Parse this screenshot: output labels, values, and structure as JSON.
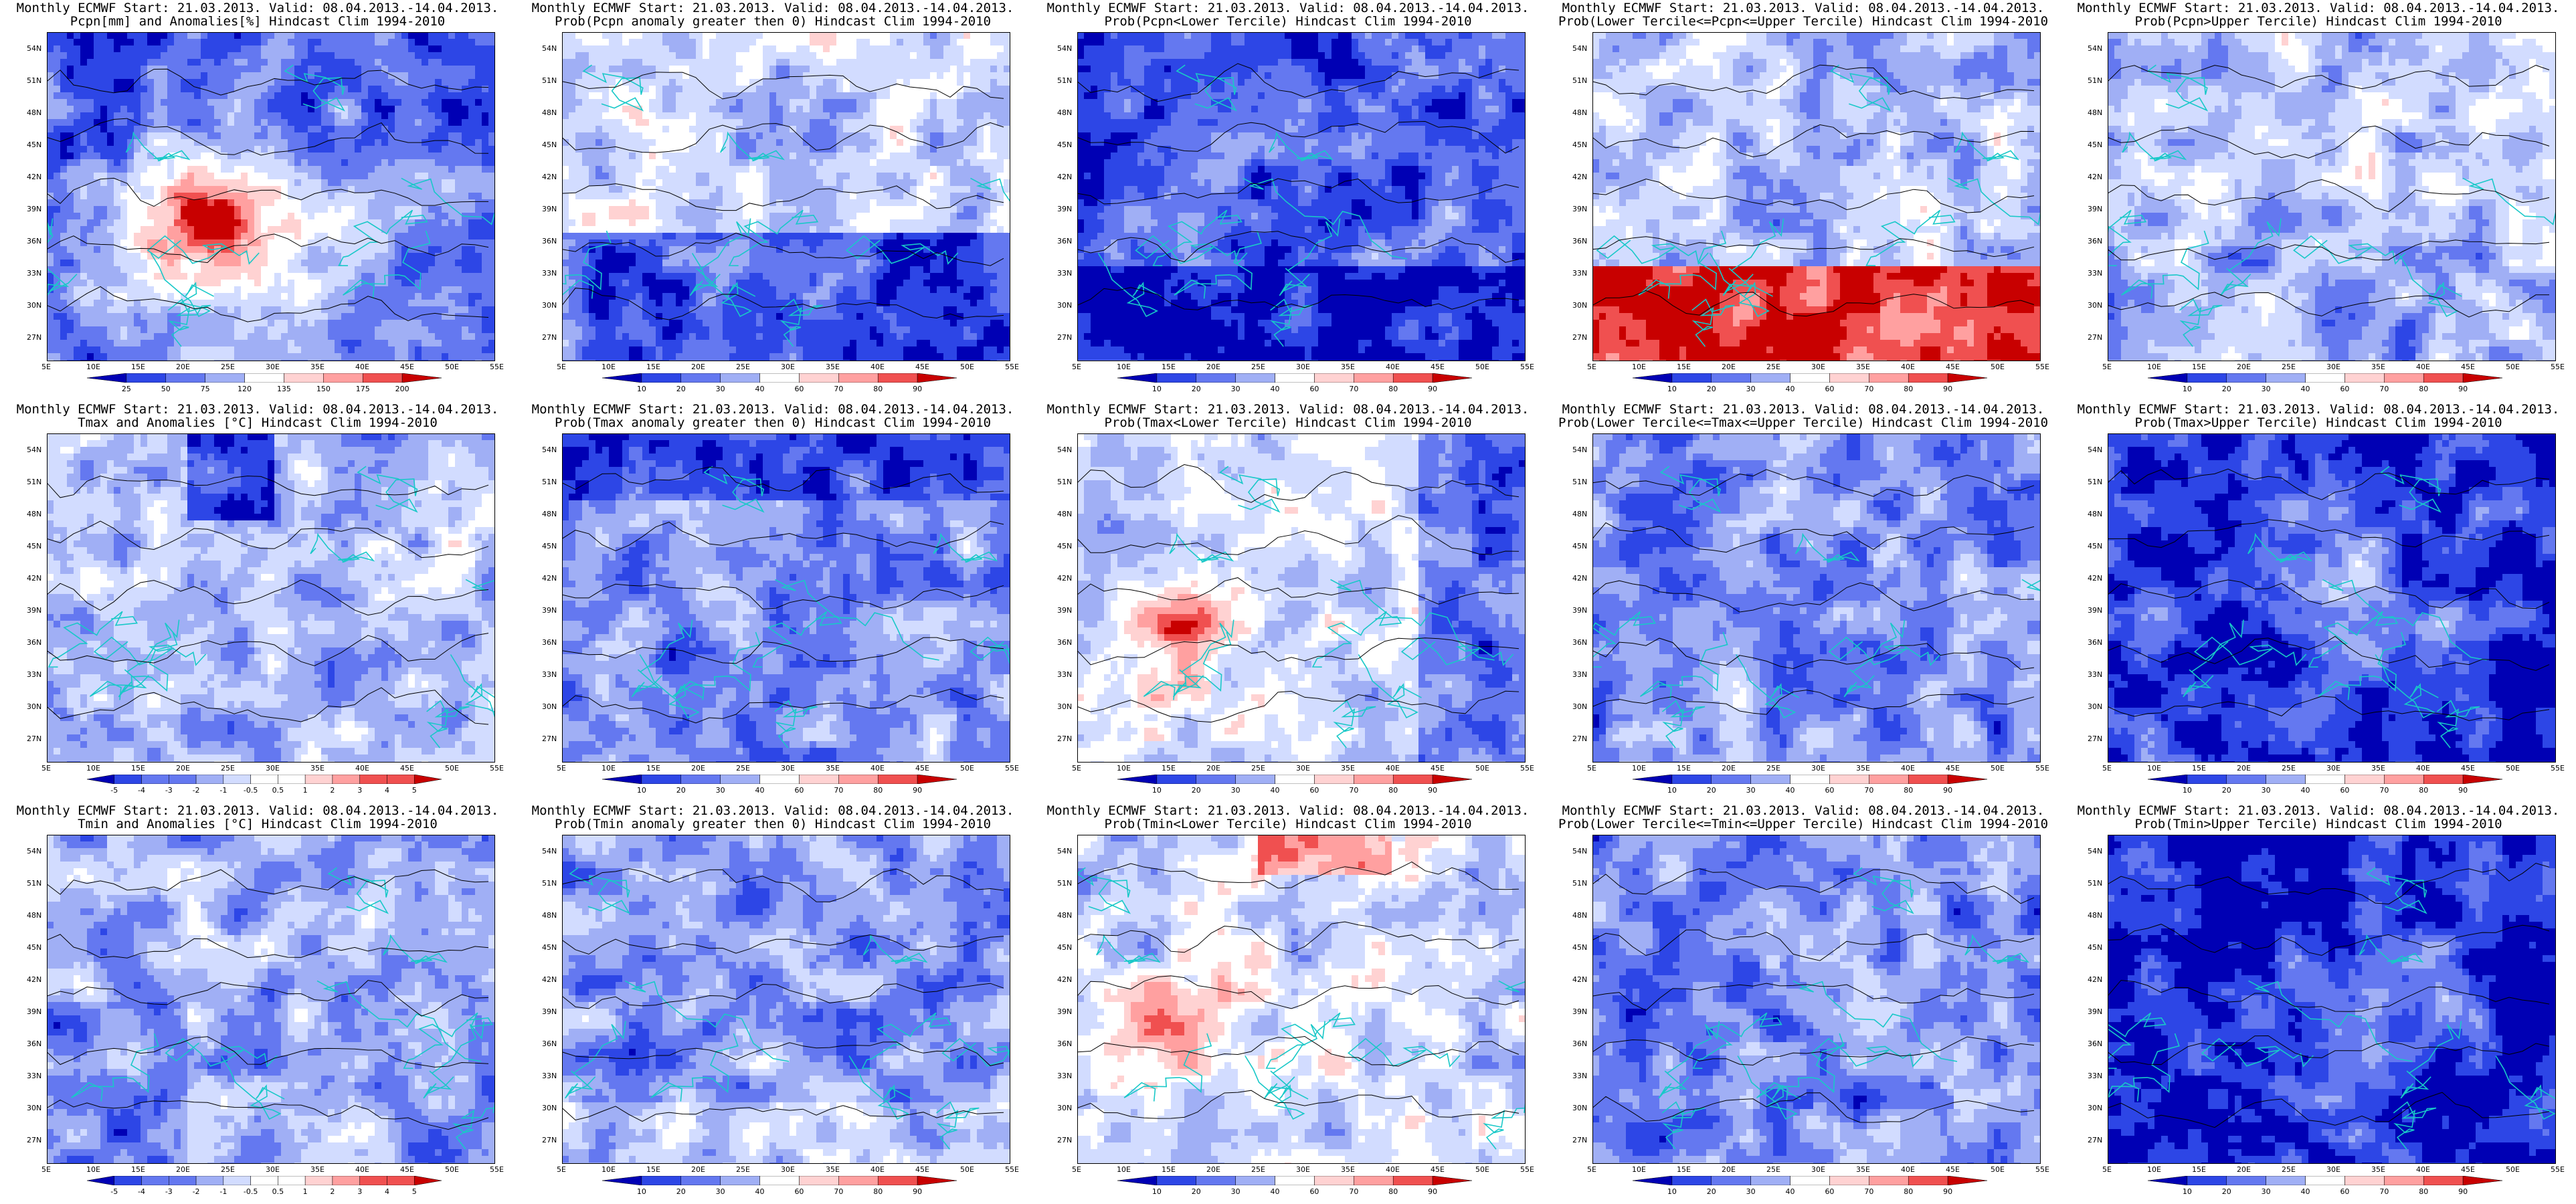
{
  "figure": {
    "title_line1": "Monthly ECMWF Start: 21.03.2013. Valid: 08.04.2013.-14.04.2013.",
    "lat_labels": [
      "54N",
      "51N",
      "48N",
      "45N",
      "42N",
      "39N",
      "36N",
      "33N",
      "30N",
      "27N"
    ],
    "lon_labels": [
      "5E",
      "10E",
      "15E",
      "20E",
      "25E",
      "30E",
      "35E",
      "40E",
      "45E",
      "50E",
      "55E"
    ],
    "colors": {
      "deep_blue": "#0000b4",
      "blue": "#2d46e6",
      "mid_blue": "#6478f0",
      "light_blue": "#a0aff5",
      "pale_blue": "#d2dcff",
      "white": "#ffffff",
      "pale_red": "#ffd2d2",
      "light_red": "#ffa0a0",
      "red": "#f05050",
      "deep_red": "#c80000",
      "border_cyan": "#19c8c8",
      "contour": "#000000"
    }
  },
  "panels": [
    {
      "id": "pcpn-anom",
      "title2": "Pcpn[mm] and Anomalies[%] Hindcast Clim 1994-2010",
      "colorbar_labels": [
        "25",
        "50",
        "75",
        "120",
        "135",
        "150",
        "175",
        "200"
      ],
      "palette": "anomaly",
      "field": "p1"
    },
    {
      "id": "pcpn-prob-gt0",
      "title2": "Prob(Pcpn anomaly greater then 0) Hindcast Clim 1994-2010",
      "colorbar_labels": [
        "10",
        "20",
        "30",
        "40",
        "60",
        "70",
        "80",
        "90"
      ],
      "palette": "prob",
      "field": "p2"
    },
    {
      "id": "pcpn-lower",
      "title2": "Prob(Pcpn<Lower Tercile) Hindcast Clim 1994-2010",
      "colorbar_labels": [
        "10",
        "20",
        "30",
        "40",
        "60",
        "70",
        "80",
        "90"
      ],
      "palette": "prob",
      "field": "p3"
    },
    {
      "id": "pcpn-middle",
      "title2": "Prob(Lower Tercile<=Pcpn<=Upper Tercile) Hindcast Clim 1994-2010",
      "colorbar_labels": [
        "10",
        "20",
        "30",
        "40",
        "60",
        "70",
        "80",
        "90"
      ],
      "palette": "prob",
      "field": "p4"
    },
    {
      "id": "pcpn-upper",
      "title2": "Prob(Pcpn>Upper Tercile) Hindcast Clim 1994-2010",
      "colorbar_labels": [
        "10",
        "20",
        "30",
        "40",
        "60",
        "70",
        "80",
        "90"
      ],
      "palette": "prob",
      "field": "p5"
    },
    {
      "id": "tmax-anom",
      "title2": "Tmax and Anomalies [°C] Hindcast Clim 1994-2010",
      "colorbar_labels": [
        "-5",
        "-4",
        "-3",
        "-2",
        "-1",
        "-0.5",
        "0.5",
        "1",
        "2",
        "3",
        "4",
        "5"
      ],
      "palette": "anomaly",
      "field": "t1"
    },
    {
      "id": "tmax-prob-gt0",
      "title2": "Prob(Tmax anomaly greater then 0) Hindcast Clim 1994-2010",
      "colorbar_labels": [
        "10",
        "20",
        "30",
        "40",
        "60",
        "70",
        "80",
        "90"
      ],
      "palette": "prob",
      "field": "t2"
    },
    {
      "id": "tmax-lower",
      "title2": "Prob(Tmax<Lower Tercile) Hindcast Clim 1994-2010",
      "colorbar_labels": [
        "10",
        "20",
        "30",
        "40",
        "60",
        "70",
        "80",
        "90"
      ],
      "palette": "prob",
      "field": "t3"
    },
    {
      "id": "tmax-middle",
      "title2": "Prob(Lower Tercile<=Tmax<=Upper Tercile) Hindcast Clim 1994-2010",
      "colorbar_labels": [
        "10",
        "20",
        "30",
        "40",
        "60",
        "70",
        "80",
        "90"
      ],
      "palette": "prob",
      "field": "t4"
    },
    {
      "id": "tmax-upper",
      "title2": "Prob(Tmax>Upper Tercile) Hindcast Clim 1994-2010",
      "colorbar_labels": [
        "10",
        "20",
        "30",
        "40",
        "60",
        "70",
        "80",
        "90"
      ],
      "palette": "prob",
      "field": "t5"
    },
    {
      "id": "tmin-anom",
      "title2": "Tmin and Anomalies [°C] Hindcast Clim 1994-2010",
      "colorbar_labels": [
        "-5",
        "-4",
        "-3",
        "-2",
        "-1",
        "-0.5",
        "0.5",
        "1",
        "2",
        "3",
        "4",
        "5"
      ],
      "palette": "anomaly",
      "field": "n1"
    },
    {
      "id": "tmin-prob-gt0",
      "title2": "Prob(Tmin anomaly greater then 0) Hindcast Clim 1994-2010",
      "colorbar_labels": [
        "10",
        "20",
        "30",
        "40",
        "60",
        "70",
        "80",
        "90"
      ],
      "palette": "prob",
      "field": "n2"
    },
    {
      "id": "tmin-lower",
      "title2": "Prob(Tmin<Lower Tercile) Hindcast Clim 1994-2010",
      "colorbar_labels": [
        "10",
        "20",
        "30",
        "40",
        "60",
        "70",
        "80",
        "90"
      ],
      "palette": "prob",
      "field": "n3"
    },
    {
      "id": "tmin-middle",
      "title2": "Prob(Lower Tercile<=Tmin<=Upper Tercile) Hindcast Clim 1994-2010",
      "colorbar_labels": [
        "10",
        "20",
        "30",
        "40",
        "60",
        "70",
        "80",
        "90"
      ],
      "palette": "prob",
      "field": "n4"
    },
    {
      "id": "tmin-upper",
      "title2": "Prob(Tmin>Upper Tercile) Hindcast Clim 1994-2010",
      "colorbar_labels": [
        "10",
        "20",
        "30",
        "40",
        "60",
        "70",
        "80",
        "90"
      ],
      "palette": "prob",
      "field": "n5"
    }
  ]
}
